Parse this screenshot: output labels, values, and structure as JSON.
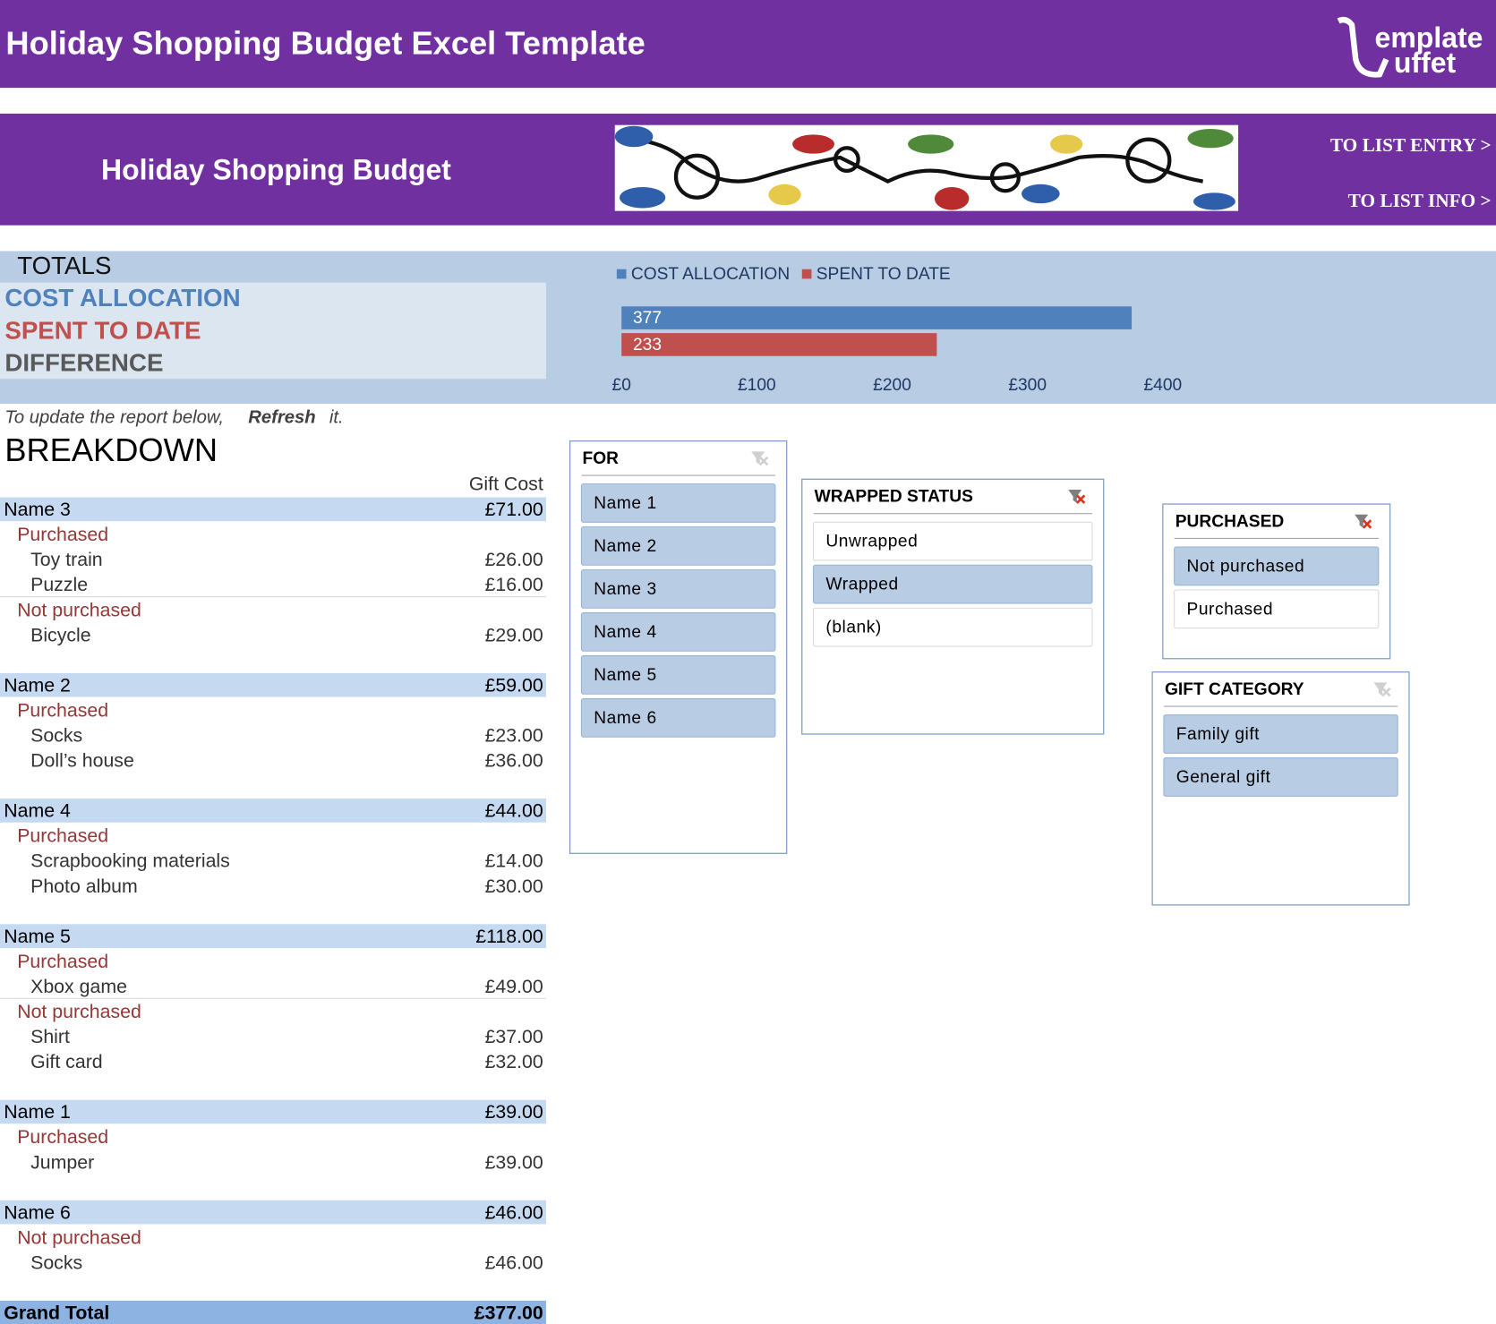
{
  "header": {
    "title": "Holiday Shopping Budget Excel Template",
    "logo": [
      "emplate",
      "uffet"
    ]
  },
  "banner": {
    "title": "Holiday Shopping Budget",
    "links": [
      "TO LIST ENTRY >",
      "TO LIST INFO >"
    ]
  },
  "totals": {
    "heading": "TOTALS",
    "labels": [
      "COST ALLOCATION",
      "SPENT TO DATE",
      "DIFFERENCE"
    ]
  },
  "chart_data": {
    "type": "bar",
    "orientation": "horizontal",
    "series": [
      {
        "name": "COST ALLOCATION",
        "color": "#4f81bd",
        "values": [
          377
        ]
      },
      {
        "name": "SPENT TO DATE",
        "color": "#c0504d",
        "values": [
          233
        ]
      }
    ],
    "xlim": [
      0,
      400
    ],
    "xticks": [
      {
        "value": 0,
        "label": "£0"
      },
      {
        "value": 100,
        "label": "£100"
      },
      {
        "value": 200,
        "label": "£200"
      },
      {
        "value": 300,
        "label": "£300"
      },
      {
        "value": 400,
        "label": "£400"
      }
    ],
    "legend": "top-left",
    "grid": false
  },
  "note": [
    "To update the report below,",
    "Refresh",
    "it."
  ],
  "breakdown": {
    "title": "BREAKDOWN",
    "column": "Gift Cost",
    "groups": [
      {
        "name": "Name 3",
        "total": "£71.00",
        "sections": [
          {
            "status": "Purchased",
            "items": [
              {
                "name": "Toy train",
                "cost": "£26.00"
              },
              {
                "name": "Puzzle",
                "cost": "£16.00"
              }
            ]
          },
          {
            "status": "Not purchased",
            "items": [
              {
                "name": "Bicycle",
                "cost": "£29.00"
              }
            ]
          }
        ]
      },
      {
        "name": "Name 2",
        "total": "£59.00",
        "sections": [
          {
            "status": "Purchased",
            "items": [
              {
                "name": "Socks",
                "cost": "£23.00"
              },
              {
                "name": "Doll’s house",
                "cost": "£36.00"
              }
            ]
          }
        ]
      },
      {
        "name": "Name 4",
        "total": "£44.00",
        "sections": [
          {
            "status": "Purchased",
            "items": [
              {
                "name": "Scrapbooking materials",
                "cost": "£14.00"
              },
              {
                "name": "Photo album",
                "cost": "£30.00"
              }
            ]
          }
        ]
      },
      {
        "name": "Name 5",
        "total": "£118.00",
        "sections": [
          {
            "status": "Purchased",
            "items": [
              {
                "name": "Xbox game",
                "cost": "£49.00"
              }
            ]
          },
          {
            "status": "Not purchased",
            "items": [
              {
                "name": "Shirt",
                "cost": "£37.00"
              },
              {
                "name": "Gift card",
                "cost": "£32.00"
              }
            ]
          }
        ]
      },
      {
        "name": "Name 1",
        "total": "£39.00",
        "sections": [
          {
            "status": "Purchased",
            "items": [
              {
                "name": "Jumper",
                "cost": "£39.00"
              }
            ]
          }
        ]
      },
      {
        "name": "Name 6",
        "total": "£46.00",
        "sections": [
          {
            "status": "Not purchased",
            "items": [
              {
                "name": "Socks",
                "cost": "£46.00"
              }
            ]
          }
        ]
      }
    ],
    "grand_total": {
      "label": "Grand Total",
      "value": "£377.00"
    }
  },
  "slicers": [
    {
      "title": "FOR",
      "filtered": false,
      "items": [
        {
          "label": "Name 1",
          "selected": true
        },
        {
          "label": "Name 2",
          "selected": true
        },
        {
          "label": "Name 3",
          "selected": true
        },
        {
          "label": "Name 4",
          "selected": true
        },
        {
          "label": "Name 5",
          "selected": true
        },
        {
          "label": "Name 6",
          "selected": true
        }
      ]
    },
    {
      "title": "WRAPPED STATUS",
      "filtered": true,
      "items": [
        {
          "label": "Unwrapped",
          "selected": false
        },
        {
          "label": "Wrapped",
          "selected": true
        },
        {
          "label": "(blank)",
          "selected": false
        }
      ]
    },
    {
      "title": "PURCHASED",
      "filtered": true,
      "items": [
        {
          "label": "Not purchased",
          "selected": true
        },
        {
          "label": "Purchased",
          "selected": false
        }
      ]
    },
    {
      "title": "GIFT CATEGORY",
      "filtered": false,
      "items": [
        {
          "label": "Family gift",
          "selected": true
        },
        {
          "label": "General gift",
          "selected": true
        }
      ]
    }
  ]
}
